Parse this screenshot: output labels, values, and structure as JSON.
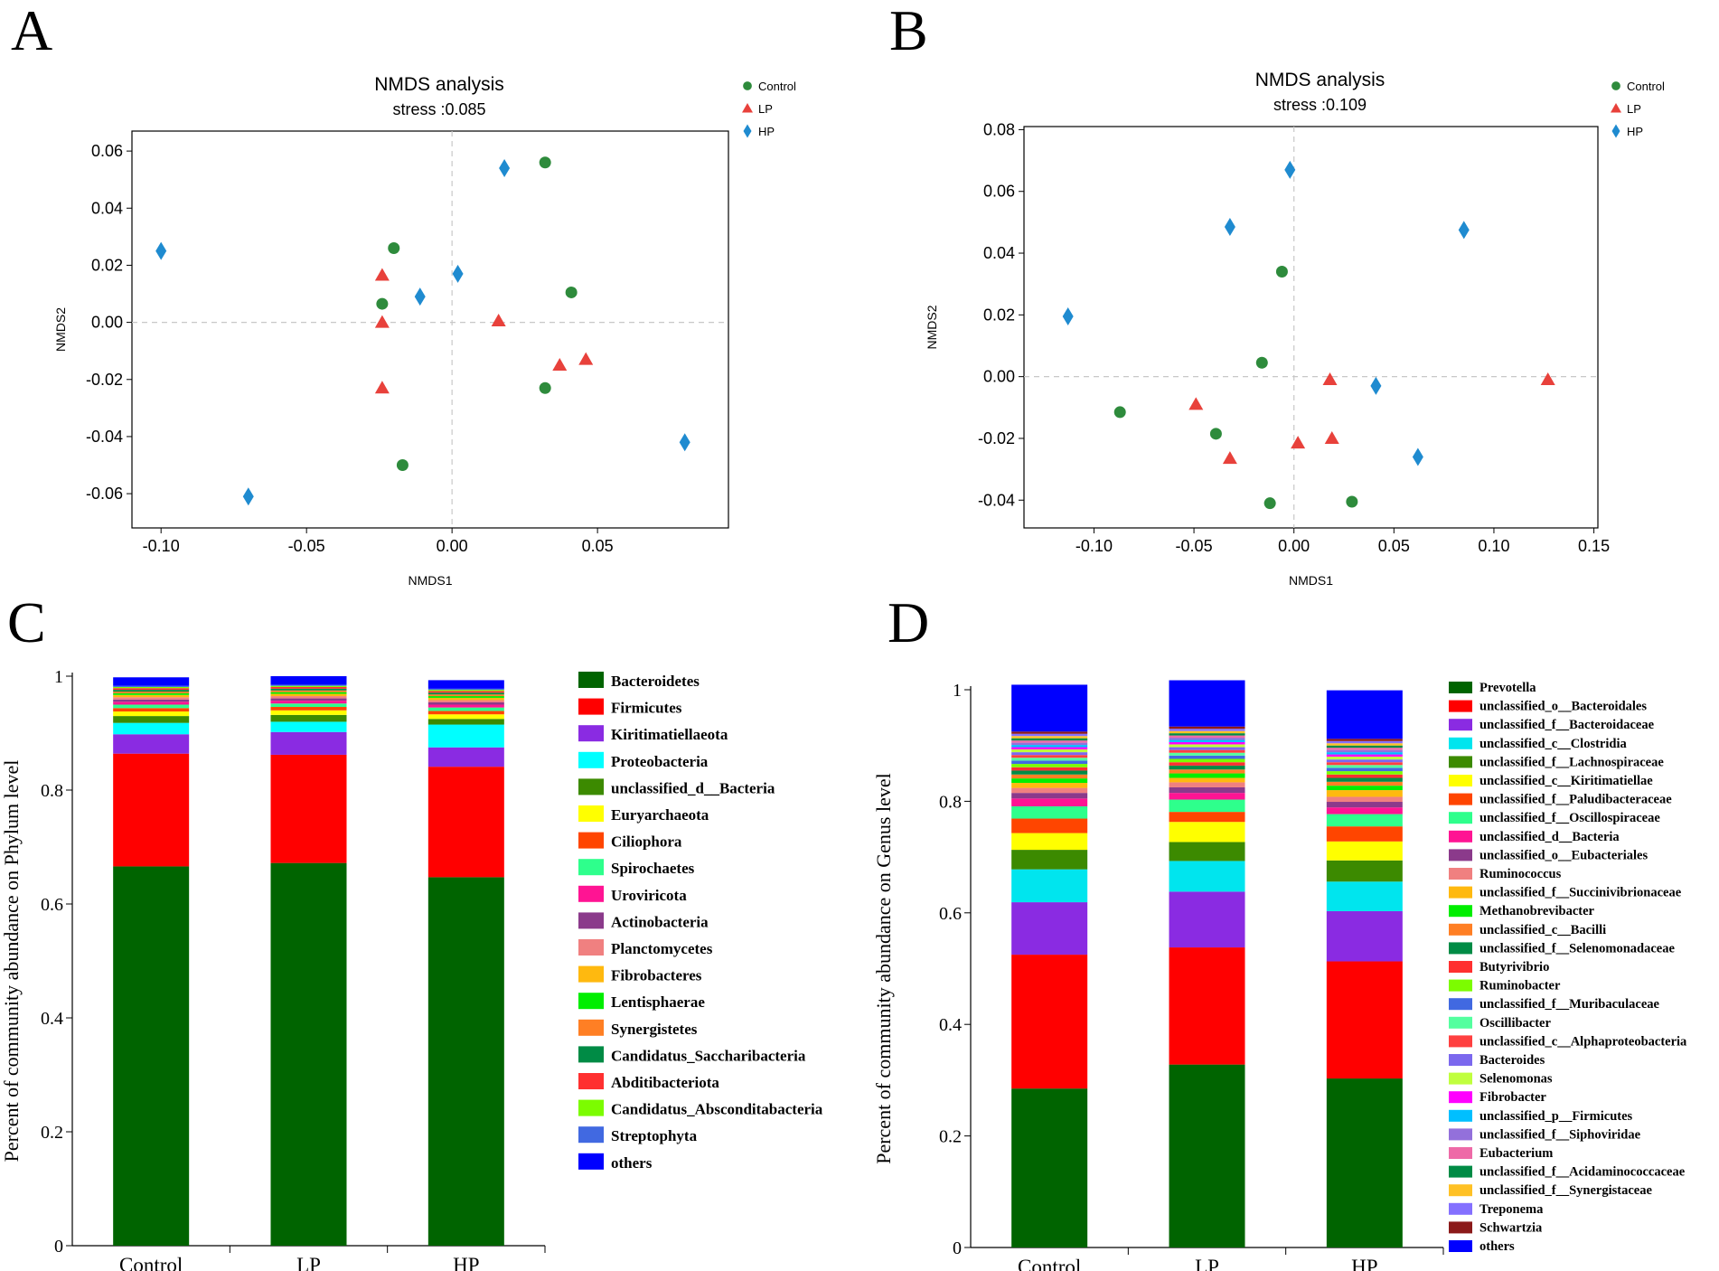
{
  "panel_labels": {
    "a": "A",
    "b": "B",
    "c": "C",
    "d": "D"
  },
  "colors": {
    "control": "#2e8b3c",
    "lp": "#e8413b",
    "hp": "#1f8bd0"
  },
  "chart_data": [
    {
      "type": "scatter",
      "panel": "A",
      "title": "NMDS analysis",
      "subtitle": "stress :0.085",
      "xlabel": "NMDS1",
      "ylabel": "NMDS2",
      "xlim": [
        -0.11,
        0.095
      ],
      "ylim": [
        -0.072,
        0.067
      ],
      "xticks": [
        -0.1,
        -0.05,
        0.0,
        0.05
      ],
      "xtick_labels": [
        "-0.10",
        "-0.05",
        "0.00",
        "0.05"
      ],
      "yticks": [
        -0.06,
        -0.04,
        -0.02,
        0.0,
        0.02,
        0.04,
        0.06
      ],
      "ytick_labels": [
        "-0.06",
        "-0.04",
        "-0.02",
        "0.00",
        "0.02",
        "0.04",
        "0.06"
      ],
      "legend": [
        "Control",
        "LP",
        "HP"
      ],
      "series": [
        {
          "name": "Control",
          "marker": "circle",
          "points": [
            [
              0.032,
              0.056
            ],
            [
              -0.02,
              0.026
            ],
            [
              -0.024,
              0.0065
            ],
            [
              0.041,
              0.0105
            ],
            [
              0.032,
              -0.023
            ],
            [
              -0.017,
              -0.05
            ]
          ]
        },
        {
          "name": "LP",
          "marker": "triangle",
          "points": [
            [
              -0.024,
              0.0165
            ],
            [
              -0.024,
              0.0
            ],
            [
              0.016,
              0.0005
            ],
            [
              0.037,
              -0.015
            ],
            [
              0.046,
              -0.013
            ],
            [
              -0.024,
              -0.023
            ]
          ]
        },
        {
          "name": "HP",
          "marker": "diamond",
          "points": [
            [
              -0.1,
              0.025
            ],
            [
              0.018,
              0.054
            ],
            [
              0.002,
              0.017
            ],
            [
              -0.011,
              0.009
            ],
            [
              0.08,
              -0.042
            ],
            [
              -0.07,
              -0.061
            ]
          ]
        }
      ]
    },
    {
      "type": "scatter",
      "panel": "B",
      "title": "NMDS analysis",
      "subtitle": "stress :0.109",
      "xlabel": "NMDS1",
      "ylabel": "NMDS2",
      "xlim": [
        -0.135,
        0.152
      ],
      "ylim": [
        -0.049,
        0.081
      ],
      "xticks": [
        -0.1,
        -0.05,
        0.0,
        0.05,
        0.1,
        0.15
      ],
      "xtick_labels": [
        "-0.10",
        "-0.05",
        "0.00",
        "0.05",
        "0.10",
        "0.15"
      ],
      "yticks": [
        -0.04,
        -0.02,
        0.0,
        0.02,
        0.04,
        0.06,
        0.08
      ],
      "ytick_labels": [
        "-0.04",
        "-0.02",
        "0.00",
        "0.02",
        "0.04",
        "0.06",
        "0.08"
      ],
      "legend": [
        "Control",
        "LP",
        "HP"
      ],
      "series": [
        {
          "name": "Control",
          "marker": "circle",
          "points": [
            [
              -0.006,
              0.034
            ],
            [
              -0.016,
              0.0045
            ],
            [
              -0.087,
              -0.0115
            ],
            [
              -0.039,
              -0.0185
            ],
            [
              -0.012,
              -0.041
            ],
            [
              0.029,
              -0.0405
            ]
          ]
        },
        {
          "name": "LP",
          "marker": "triangle",
          "points": [
            [
              -0.049,
              -0.009
            ],
            [
              -0.032,
              -0.0265
            ],
            [
              0.002,
              -0.0215
            ],
            [
              0.018,
              -0.001
            ],
            [
              0.019,
              -0.02
            ],
            [
              0.127,
              -0.001
            ]
          ]
        },
        {
          "name": "HP",
          "marker": "diamond",
          "points": [
            [
              -0.113,
              0.0195
            ],
            [
              -0.032,
              0.0485
            ],
            [
              -0.002,
              0.067
            ],
            [
              0.085,
              0.0475
            ],
            [
              0.041,
              -0.003
            ],
            [
              0.062,
              -0.026
            ]
          ]
        }
      ]
    },
    {
      "type": "stacked_bar",
      "panel": "C",
      "ylabel": "Percent of community abundance on Phylum level",
      "categories": [
        "Control",
        "LP",
        "HP"
      ],
      "ylim": [
        0,
        1
      ],
      "yticks": [
        0,
        0.2,
        0.4,
        0.6,
        0.8,
        1
      ],
      "ytick_labels": [
        "0",
        "0.2",
        "0.4",
        "0.6",
        "0.8",
        "1"
      ],
      "legend": [
        "Bacteroidetes",
        "Firmicutes",
        "Kiritimatiellaeota",
        "Proteobacteria",
        "unclassified_d__Bacteria",
        "Euryarchaeota",
        "Ciliophora",
        "Spirochaetes",
        "Uroviricota",
        "Actinobacteria",
        "Planctomycetes",
        "Fibrobacteres",
        "Lentisphaerae",
        "Synergistetes",
        "Candidatus_Saccharibacteria",
        "Abditibacteriota",
        "Candidatus_Absconditabacteria",
        "Streptophyta",
        "others"
      ],
      "series": [
        {
          "name": "Bacteroidetes",
          "color": "#006400",
          "values": [
            0.666,
            0.672,
            0.647
          ]
        },
        {
          "name": "Firmicutes",
          "color": "#ff0000",
          "values": [
            0.198,
            0.19,
            0.194
          ]
        },
        {
          "name": "Kiritimatiellaeota",
          "color": "#8a2be2",
          "values": [
            0.034,
            0.04,
            0.034
          ]
        },
        {
          "name": "Proteobacteria",
          "color": "#00ffff",
          "values": [
            0.02,
            0.018,
            0.04
          ]
        },
        {
          "name": "unclassified_d__Bacteria",
          "color": "#3c8a00",
          "values": [
            0.012,
            0.012,
            0.01
          ]
        },
        {
          "name": "Euryarchaeota",
          "color": "#ffff00",
          "values": [
            0.008,
            0.008,
            0.008
          ]
        },
        {
          "name": "Ciliophora",
          "color": "#ff4500",
          "values": [
            0.006,
            0.006,
            0.006
          ]
        },
        {
          "name": "Spirochaetes",
          "color": "#2eff8c",
          "values": [
            0.006,
            0.006,
            0.006
          ]
        },
        {
          "name": "Uroviricota",
          "color": "#ff1493",
          "values": [
            0.005,
            0.005,
            0.005
          ]
        },
        {
          "name": "Actinobacteria",
          "color": "#8b3a8b",
          "values": [
            0.004,
            0.004,
            0.004
          ]
        },
        {
          "name": "Planctomycetes",
          "color": "#f08080",
          "values": [
            0.004,
            0.004,
            0.004
          ]
        },
        {
          "name": "Fibrobacteres",
          "color": "#ffb90f",
          "values": [
            0.004,
            0.004,
            0.004
          ]
        },
        {
          "name": "Lentisphaerae",
          "color": "#00ee00",
          "values": [
            0.003,
            0.003,
            0.003
          ]
        },
        {
          "name": "Synergistetes",
          "color": "#ff7f24",
          "values": [
            0.003,
            0.003,
            0.003
          ]
        },
        {
          "name": "Candidatus_Saccharibacteria",
          "color": "#008b45",
          "values": [
            0.003,
            0.003,
            0.003
          ]
        },
        {
          "name": "Abditibacteriota",
          "color": "#ff3030",
          "values": [
            0.003,
            0.003,
            0.003
          ]
        },
        {
          "name": "Candidatus_Absconditabacteria",
          "color": "#7cfc00",
          "values": [
            0.002,
            0.002,
            0.002
          ]
        },
        {
          "name": "Streptophyta",
          "color": "#4169e1",
          "values": [
            0.002,
            0.002,
            0.002
          ]
        },
        {
          "name": "others",
          "color": "#0000ff",
          "values": [
            0.015,
            0.015,
            0.015
          ]
        }
      ]
    },
    {
      "type": "stacked_bar",
      "panel": "D",
      "ylabel": "Percent of community abundance on Genus level",
      "categories": [
        "Control",
        "LP",
        "HP"
      ],
      "ylim": [
        0,
        1
      ],
      "yticks": [
        0,
        0.2,
        0.4,
        0.6,
        0.8,
        1
      ],
      "ytick_labels": [
        "0",
        "0.2",
        "0.4",
        "0.6",
        "0.8",
        "1"
      ],
      "legend": [
        "Prevotella",
        "unclassified_o__Bacteroidales",
        "unclassified_f__Bacteroidaceae",
        "unclassified_c__Clostridia",
        "unclassified_f__Lachnospiraceae",
        "unclassified_c__Kiritimatiellae",
        "unclassified_f__Paludibacteraceae",
        "unclassified_f__Oscillospiraceae",
        "unclassified_d__Bacteria",
        "unclassified_o__Eubacteriales",
        "Ruminococcus",
        "unclassified_f__Succinivibrionaceae",
        "Methanobrevibacter",
        "unclassified_c__Bacilli",
        "unclassified_f__Selenomonadaceae",
        "Butyrivibrio",
        "Ruminobacter",
        "unclassified_f__Muribaculaceae",
        "Oscillibacter",
        "unclassified_c__Alphaproteobacteria",
        "Bacteroides",
        "Selenomonas",
        "Fibrobacter",
        "unclassified_p__Firmicutes",
        "unclassified_f__Siphoviridae",
        "Eubacterium",
        "unclassified_f__Acidaminococcaceae",
        "unclassified_f__Synergistaceae",
        "Treponema",
        "Schwartzia",
        "others"
      ],
      "series": [
        {
          "name": "Prevotella",
          "color": "#006400",
          "values": [
            0.285,
            0.328,
            0.303
          ]
        },
        {
          "name": "unclassified_o__Bacteroidales",
          "color": "#ff0000",
          "values": [
            0.24,
            0.21,
            0.21
          ]
        },
        {
          "name": "unclassified_f__Bacteroidaceae",
          "color": "#8a2be2",
          "values": [
            0.094,
            0.1,
            0.09
          ]
        },
        {
          "name": "unclassified_c__Clostridia",
          "color": "#00e5ee",
          "values": [
            0.059,
            0.055,
            0.053
          ]
        },
        {
          "name": "unclassified_f__Lachnospiraceae",
          "color": "#3c8a00",
          "values": [
            0.035,
            0.034,
            0.038
          ]
        },
        {
          "name": "unclassified_c__Kiritimatiellae",
          "color": "#ffff00",
          "values": [
            0.03,
            0.036,
            0.034
          ]
        },
        {
          "name": "unclassified_f__Paludibacteraceae",
          "color": "#ff4500",
          "values": [
            0.026,
            0.018,
            0.027
          ]
        },
        {
          "name": "unclassified_f__Oscillospiraceae",
          "color": "#2eff8c",
          "values": [
            0.022,
            0.022,
            0.022
          ]
        },
        {
          "name": "unclassified_d__Bacteria",
          "color": "#ff1493",
          "values": [
            0.014,
            0.012,
            0.012
          ]
        },
        {
          "name": "unclassified_o__Eubacteriales",
          "color": "#8b3a8b",
          "values": [
            0.01,
            0.01,
            0.01
          ]
        },
        {
          "name": "Ruminococcus",
          "color": "#f08080",
          "values": [
            0.009,
            0.009,
            0.009
          ]
        },
        {
          "name": "unclassified_f__Succinivibrionaceae",
          "color": "#ffb90f",
          "values": [
            0.009,
            0.008,
            0.012
          ]
        },
        {
          "name": "Methanobrevibacter",
          "color": "#00ee00",
          "values": [
            0.008,
            0.008,
            0.008
          ]
        },
        {
          "name": "unclassified_c__Bacilli",
          "color": "#ff7f24",
          "values": [
            0.007,
            0.007,
            0.007
          ]
        },
        {
          "name": "unclassified_f__Selenomonadaceae",
          "color": "#008b45",
          "values": [
            0.007,
            0.007,
            0.007
          ]
        },
        {
          "name": "Butyrivibrio",
          "color": "#ff3030",
          "values": [
            0.006,
            0.006,
            0.006
          ]
        },
        {
          "name": "Ruminobacter",
          "color": "#7cfc00",
          "values": [
            0.006,
            0.006,
            0.006
          ]
        },
        {
          "name": "unclassified_f__Muribaculaceae",
          "color": "#4169e1",
          "values": [
            0.006,
            0.006,
            0.006
          ]
        },
        {
          "name": "Oscillibacter",
          "color": "#54ff9f",
          "values": [
            0.005,
            0.005,
            0.005
          ]
        },
        {
          "name": "unclassified_c__Alphaproteobacteria",
          "color": "#ff4040",
          "values": [
            0.005,
            0.005,
            0.005
          ]
        },
        {
          "name": "Bacteroides",
          "color": "#7b68ee",
          "values": [
            0.005,
            0.005,
            0.005
          ]
        },
        {
          "name": "Selenomonas",
          "color": "#c0ff3e",
          "values": [
            0.005,
            0.005,
            0.005
          ]
        },
        {
          "name": "Fibrobacter",
          "color": "#ff00ff",
          "values": [
            0.004,
            0.004,
            0.004
          ]
        },
        {
          "name": "unclassified_p__Firmicutes",
          "color": "#00bfff",
          "values": [
            0.004,
            0.004,
            0.004
          ]
        },
        {
          "name": "unclassified_f__Siphoviridae",
          "color": "#9370db",
          "values": [
            0.004,
            0.004,
            0.004
          ]
        },
        {
          "name": "Eubacterium",
          "color": "#ee6aa7",
          "values": [
            0.004,
            0.004,
            0.004
          ]
        },
        {
          "name": "unclassified_f__Acidaminococcaceae",
          "color": "#008b45",
          "values": [
            0.004,
            0.004,
            0.004
          ]
        },
        {
          "name": "unclassified_f__Synergistaceae",
          "color": "#ffc125",
          "values": [
            0.004,
            0.004,
            0.004
          ]
        },
        {
          "name": "Treponema",
          "color": "#8470ff",
          "values": [
            0.004,
            0.004,
            0.004
          ]
        },
        {
          "name": "Schwartzia",
          "color": "#8b1a1a",
          "values": [
            0.004,
            0.004,
            0.004
          ]
        },
        {
          "name": "others",
          "color": "#0000ff",
          "values": [
            0.084,
            0.083,
            0.087
          ]
        }
      ]
    }
  ]
}
